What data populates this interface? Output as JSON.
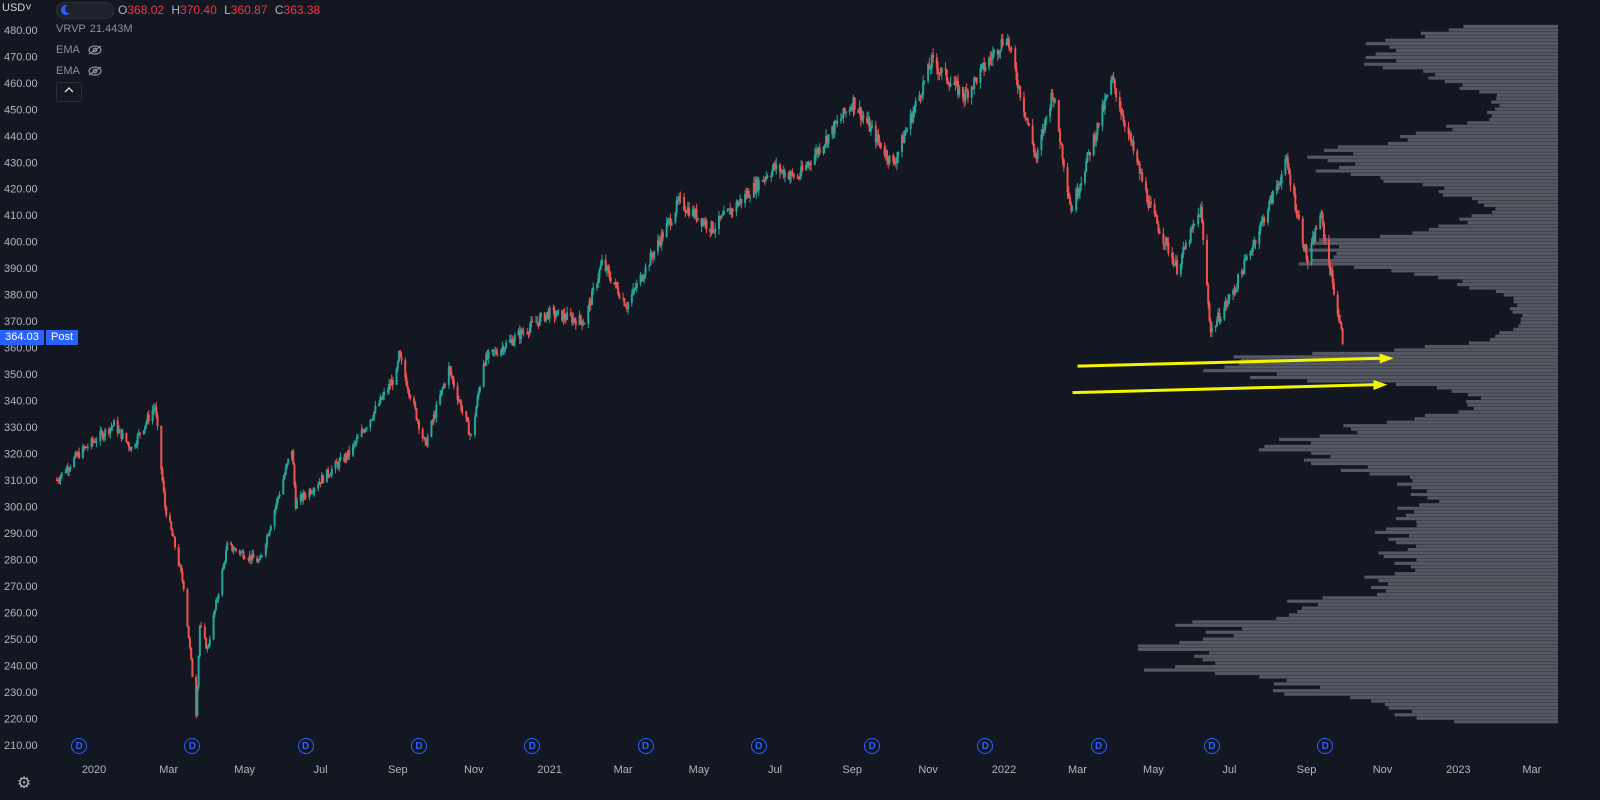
{
  "toolbar": {
    "currency": "USD˅"
  },
  "legend": {
    "open_key": "O",
    "open": "368.02",
    "high_key": "H",
    "high": "370.40",
    "low_key": "L",
    "low": "360.87",
    "close_key": "C",
    "close": "363.38",
    "vrvp_name": "VRVP",
    "vrvp_value": "21.443M",
    "ema1_name": "EMA",
    "ema2_name": "EMA",
    "collapse_icon": "chevron-up-icon"
  },
  "price_marker": {
    "value": "364.03",
    "session": "Post"
  },
  "colors": {
    "up": "#26a69a",
    "down": "#ef5350",
    "background": "#131722",
    "volume_profile": "#6b6f78",
    "annotation_arrow": "#f5f500",
    "marker": "#2962ff"
  },
  "dividend_marker": "D",
  "dividend_markers_count": 12,
  "chart_data": {
    "type": "candlestick",
    "y_axis": {
      "range": [
        205,
        486
      ],
      "ticks": [
        "480.00",
        "470.00",
        "460.00",
        "450.00",
        "440.00",
        "430.00",
        "420.00",
        "410.00",
        "400.00",
        "390.00",
        "380.00",
        "370.00",
        "360.00",
        "350.00",
        "340.00",
        "330.00",
        "320.00",
        "310.00",
        "300.00",
        "290.00",
        "280.00",
        "270.00",
        "260.00",
        "250.00",
        "240.00",
        "230.00",
        "220.00",
        "210.00"
      ]
    },
    "x_axis": {
      "labels": [
        "2020",
        "Mar",
        "May",
        "Jul",
        "Sep",
        "Nov",
        "2021",
        "Mar",
        "May",
        "Jul",
        "Sep",
        "Nov",
        "2022",
        "Mar",
        "May",
        "Jul",
        "Sep",
        "Nov",
        "2023",
        "Mar"
      ]
    },
    "price_path": [
      {
        "date": "2019-12-02",
        "price": 310
      },
      {
        "date": "2019-12-20",
        "price": 320
      },
      {
        "date": "2020-01-17",
        "price": 331
      },
      {
        "date": "2020-01-31",
        "price": 322
      },
      {
        "date": "2020-02-19",
        "price": 338
      },
      {
        "date": "2020-02-27",
        "price": 300
      },
      {
        "date": "2020-03-06",
        "price": 285
      },
      {
        "date": "2020-03-13",
        "price": 270
      },
      {
        "date": "2020-03-23",
        "price": 222
      },
      {
        "date": "2020-03-26",
        "price": 255
      },
      {
        "date": "2020-04-01",
        "price": 246
      },
      {
        "date": "2020-04-17",
        "price": 285
      },
      {
        "date": "2020-05-01",
        "price": 282
      },
      {
        "date": "2020-05-13",
        "price": 279
      },
      {
        "date": "2020-06-08",
        "price": 322
      },
      {
        "date": "2020-06-11",
        "price": 301
      },
      {
        "date": "2020-07-01",
        "price": 310
      },
      {
        "date": "2020-07-24",
        "price": 320
      },
      {
        "date": "2020-08-31",
        "price": 350
      },
      {
        "date": "2020-09-02",
        "price": 357
      },
      {
        "date": "2020-09-23",
        "price": 323
      },
      {
        "date": "2020-10-12",
        "price": 352
      },
      {
        "date": "2020-10-30",
        "price": 326
      },
      {
        "date": "2020-11-09",
        "price": 355
      },
      {
        "date": "2020-12-31",
        "price": 373
      },
      {
        "date": "2021-01-29",
        "price": 370
      },
      {
        "date": "2021-02-12",
        "price": 392
      },
      {
        "date": "2021-03-04",
        "price": 376
      },
      {
        "date": "2021-04-15",
        "price": 415
      },
      {
        "date": "2021-05-12",
        "price": 405
      },
      {
        "date": "2021-06-30",
        "price": 428
      },
      {
        "date": "2021-07-19",
        "price": 424
      },
      {
        "date": "2021-09-02",
        "price": 453
      },
      {
        "date": "2021-10-04",
        "price": 429
      },
      {
        "date": "2021-11-04",
        "price": 468
      },
      {
        "date": "2021-11-30",
        "price": 455
      },
      {
        "date": "2022-01-03",
        "price": 478
      },
      {
        "date": "2022-01-27",
        "price": 431
      },
      {
        "date": "2022-02-09",
        "price": 457
      },
      {
        "date": "2022-02-24",
        "price": 412
      },
      {
        "date": "2022-03-29",
        "price": 461
      },
      {
        "date": "2022-04-29",
        "price": 412
      },
      {
        "date": "2022-05-20",
        "price": 390
      },
      {
        "date": "2022-06-08",
        "price": 412
      },
      {
        "date": "2022-06-16",
        "price": 366
      },
      {
        "date": "2022-07-05",
        "price": 382
      },
      {
        "date": "2022-08-16",
        "price": 430
      },
      {
        "date": "2022-09-02",
        "price": 392
      },
      {
        "date": "2022-09-12",
        "price": 411
      },
      {
        "date": "2022-09-30",
        "price": 363
      }
    ],
    "annotations": [
      {
        "type": "arrow",
        "color": "#f5f500",
        "from": {
          "date": "2022-03-01",
          "price": 353
        },
        "to": {
          "date": "2022-11-10",
          "price": 356
        }
      },
      {
        "type": "arrow",
        "color": "#f5f500",
        "from": {
          "date": "2022-02-25",
          "price": 343
        },
        "to": {
          "date": "2022-11-05",
          "price": 346
        }
      }
    ],
    "volume_profile": "visible range volume profile on right side, heaviest near 220-270 and 345-360"
  }
}
